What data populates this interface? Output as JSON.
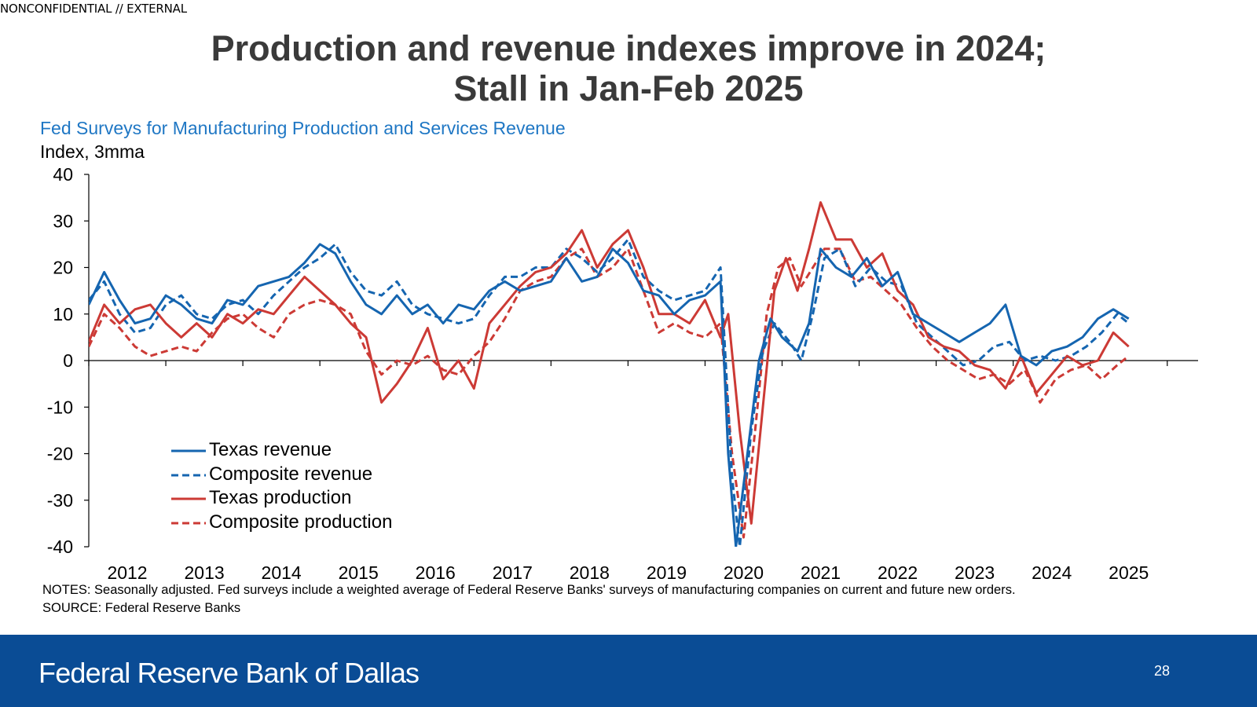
{
  "classification": "NONCONFIDENTIAL // EXTERNAL",
  "headline": {
    "line1": "Production and revenue indexes improve in 2024;",
    "line2": "Stall in Jan-Feb 2025"
  },
  "footer": {
    "brand": "Federal Reserve Bank of Dallas",
    "page_number": "28",
    "color": "#0a4c95"
  },
  "notes": {
    "notes_text": "NOTES: Seasonally adjusted. Fed surveys include a weighted average of Federal Reserve Banks' surveys of manufacturing companies on current and future new orders.",
    "source_text": "SOURCE: Federal Reserve Banks"
  },
  "chart_data": {
    "type": "line",
    "title": "Fed Surveys for Manufacturing Production and Services Revenue",
    "ylabel": "Index, 3mma",
    "ylim": [
      -40,
      40
    ],
    "yticks": [
      40,
      30,
      20,
      10,
      0,
      -10,
      -20,
      -30,
      -40
    ],
    "xlim": [
      2011.5,
      2025.9
    ],
    "xticks": [
      "2012",
      "2013",
      "2014",
      "2015",
      "2016",
      "2017",
      "2018",
      "2019",
      "2020",
      "2021",
      "2022",
      "2023",
      "2024",
      "2025"
    ],
    "legend_position": "bottom-left",
    "series": [
      {
        "name": "Texas revenue",
        "color": "#1565b0",
        "dash": "solid",
        "points": [
          [
            2011.5,
            12
          ],
          [
            2011.7,
            19
          ],
          [
            2011.9,
            13
          ],
          [
            2012.1,
            8
          ],
          [
            2012.3,
            9
          ],
          [
            2012.5,
            14
          ],
          [
            2012.7,
            12
          ],
          [
            2012.9,
            9
          ],
          [
            2013.1,
            8
          ],
          [
            2013.3,
            13
          ],
          [
            2013.5,
            12
          ],
          [
            2013.7,
            16
          ],
          [
            2013.9,
            17
          ],
          [
            2014.1,
            18
          ],
          [
            2014.3,
            21
          ],
          [
            2014.5,
            25
          ],
          [
            2014.7,
            23
          ],
          [
            2014.9,
            17
          ],
          [
            2015.1,
            12
          ],
          [
            2015.3,
            10
          ],
          [
            2015.5,
            14
          ],
          [
            2015.7,
            10
          ],
          [
            2015.9,
            12
          ],
          [
            2016.1,
            8
          ],
          [
            2016.3,
            12
          ],
          [
            2016.5,
            11
          ],
          [
            2016.7,
            15
          ],
          [
            2016.9,
            17
          ],
          [
            2017.1,
            15
          ],
          [
            2017.3,
            16
          ],
          [
            2017.5,
            17
          ],
          [
            2017.7,
            22
          ],
          [
            2017.9,
            17
          ],
          [
            2018.1,
            18
          ],
          [
            2018.3,
            24
          ],
          [
            2018.5,
            21
          ],
          [
            2018.7,
            15
          ],
          [
            2018.9,
            14
          ],
          [
            2019.1,
            10
          ],
          [
            2019.3,
            13
          ],
          [
            2019.5,
            14
          ],
          [
            2019.7,
            17
          ],
          [
            2019.8,
            -20
          ],
          [
            2019.9,
            -40
          ],
          [
            2020.05,
            -20
          ],
          [
            2020.2,
            0
          ],
          [
            2020.35,
            9
          ],
          [
            2020.5,
            5
          ],
          [
            2020.7,
            2
          ],
          [
            2020.85,
            8
          ],
          [
            2021.0,
            24
          ],
          [
            2021.2,
            20
          ],
          [
            2021.4,
            18
          ],
          [
            2021.6,
            22
          ],
          [
            2021.8,
            16
          ],
          [
            2022.0,
            19
          ],
          [
            2022.2,
            10
          ],
          [
            2022.4,
            8
          ],
          [
            2022.6,
            6
          ],
          [
            2022.8,
            4
          ],
          [
            2023.0,
            6
          ],
          [
            2023.2,
            8
          ],
          [
            2023.4,
            12
          ],
          [
            2023.6,
            1
          ],
          [
            2023.8,
            -1
          ],
          [
            2024.0,
            2
          ],
          [
            2024.2,
            3
          ],
          [
            2024.4,
            5
          ],
          [
            2024.6,
            9
          ],
          [
            2024.8,
            11
          ],
          [
            2025.0,
            9
          ]
        ]
      },
      {
        "name": "Composite revenue",
        "color": "#1565b0",
        "dash": "dashed",
        "points": [
          [
            2011.5,
            13
          ],
          [
            2011.7,
            17
          ],
          [
            2011.9,
            10
          ],
          [
            2012.1,
            6
          ],
          [
            2012.3,
            7
          ],
          [
            2012.5,
            12
          ],
          [
            2012.7,
            14
          ],
          [
            2012.9,
            10
          ],
          [
            2013.1,
            9
          ],
          [
            2013.3,
            12
          ],
          [
            2013.5,
            13
          ],
          [
            2013.7,
            10
          ],
          [
            2013.9,
            14
          ],
          [
            2014.1,
            17
          ],
          [
            2014.3,
            20
          ],
          [
            2014.5,
            22
          ],
          [
            2014.7,
            25
          ],
          [
            2014.9,
            19
          ],
          [
            2015.1,
            15
          ],
          [
            2015.3,
            14
          ],
          [
            2015.5,
            17
          ],
          [
            2015.7,
            12
          ],
          [
            2015.9,
            10
          ],
          [
            2016.1,
            9
          ],
          [
            2016.3,
            8
          ],
          [
            2016.5,
            9
          ],
          [
            2016.7,
            14
          ],
          [
            2016.9,
            18
          ],
          [
            2017.1,
            18
          ],
          [
            2017.3,
            20
          ],
          [
            2017.5,
            20
          ],
          [
            2017.7,
            24
          ],
          [
            2017.9,
            22
          ],
          [
            2018.1,
            19
          ],
          [
            2018.3,
            22
          ],
          [
            2018.5,
            26
          ],
          [
            2018.7,
            18
          ],
          [
            2018.9,
            15
          ],
          [
            2019.1,
            13
          ],
          [
            2019.3,
            14
          ],
          [
            2019.5,
            15
          ],
          [
            2019.7,
            20
          ],
          [
            2019.85,
            -25
          ],
          [
            2019.95,
            -40
          ],
          [
            2020.1,
            -15
          ],
          [
            2020.25,
            2
          ],
          [
            2020.4,
            8
          ],
          [
            2020.6,
            4
          ],
          [
            2020.75,
            0
          ],
          [
            2020.9,
            10
          ],
          [
            2021.05,
            22
          ],
          [
            2021.25,
            24
          ],
          [
            2021.45,
            16
          ],
          [
            2021.65,
            20
          ],
          [
            2021.85,
            17
          ],
          [
            2022.05,
            16
          ],
          [
            2022.25,
            8
          ],
          [
            2022.45,
            5
          ],
          [
            2022.65,
            2
          ],
          [
            2022.85,
            -1
          ],
          [
            2023.05,
            0
          ],
          [
            2023.25,
            3
          ],
          [
            2023.45,
            4
          ],
          [
            2023.65,
            0
          ],
          [
            2023.85,
            1
          ],
          [
            2024.05,
            0
          ],
          [
            2024.25,
            1
          ],
          [
            2024.45,
            3
          ],
          [
            2024.65,
            6
          ],
          [
            2024.85,
            10
          ],
          [
            2025.0,
            8
          ]
        ]
      },
      {
        "name": "Texas production",
        "color": "#cc3a35",
        "dash": "solid",
        "points": [
          [
            2011.5,
            4
          ],
          [
            2011.7,
            12
          ],
          [
            2011.9,
            8
          ],
          [
            2012.1,
            11
          ],
          [
            2012.3,
            12
          ],
          [
            2012.5,
            8
          ],
          [
            2012.7,
            5
          ],
          [
            2012.9,
            8
          ],
          [
            2013.1,
            5
          ],
          [
            2013.3,
            10
          ],
          [
            2013.5,
            8
          ],
          [
            2013.7,
            11
          ],
          [
            2013.9,
            10
          ],
          [
            2014.1,
            14
          ],
          [
            2014.3,
            18
          ],
          [
            2014.5,
            15
          ],
          [
            2014.7,
            12
          ],
          [
            2014.9,
            8
          ],
          [
            2015.1,
            5
          ],
          [
            2015.3,
            -9
          ],
          [
            2015.5,
            -5
          ],
          [
            2015.7,
            0
          ],
          [
            2015.9,
            7
          ],
          [
            2016.1,
            -4
          ],
          [
            2016.3,
            0
          ],
          [
            2016.5,
            -6
          ],
          [
            2016.7,
            8
          ],
          [
            2016.9,
            12
          ],
          [
            2017.1,
            16
          ],
          [
            2017.3,
            19
          ],
          [
            2017.5,
            20
          ],
          [
            2017.7,
            23
          ],
          [
            2017.9,
            28
          ],
          [
            2018.1,
            20
          ],
          [
            2018.3,
            25
          ],
          [
            2018.5,
            28
          ],
          [
            2018.7,
            20
          ],
          [
            2018.9,
            10
          ],
          [
            2019.1,
            10
          ],
          [
            2019.3,
            8
          ],
          [
            2019.5,
            13
          ],
          [
            2019.7,
            5
          ],
          [
            2019.8,
            10
          ],
          [
            2019.95,
            -15
          ],
          [
            2020.1,
            -35
          ],
          [
            2020.25,
            -10
          ],
          [
            2020.4,
            15
          ],
          [
            2020.55,
            22
          ],
          [
            2020.7,
            15
          ],
          [
            2020.85,
            24
          ],
          [
            2021.0,
            34
          ],
          [
            2021.2,
            26
          ],
          [
            2021.4,
            26
          ],
          [
            2021.6,
            20
          ],
          [
            2021.8,
            23
          ],
          [
            2022.0,
            15
          ],
          [
            2022.2,
            12
          ],
          [
            2022.4,
            5
          ],
          [
            2022.6,
            3
          ],
          [
            2022.8,
            2
          ],
          [
            2023.0,
            -1
          ],
          [
            2023.2,
            -2
          ],
          [
            2023.4,
            -6
          ],
          [
            2023.6,
            1
          ],
          [
            2023.8,
            -7
          ],
          [
            2024.0,
            -3
          ],
          [
            2024.2,
            1
          ],
          [
            2024.4,
            -1
          ],
          [
            2024.6,
            0
          ],
          [
            2024.8,
            6
          ],
          [
            2025.0,
            3
          ]
        ]
      },
      {
        "name": "Composite production",
        "color": "#cc3a35",
        "dash": "dashed",
        "points": [
          [
            2011.5,
            3
          ],
          [
            2011.7,
            10
          ],
          [
            2011.9,
            7
          ],
          [
            2012.1,
            3
          ],
          [
            2012.3,
            1
          ],
          [
            2012.5,
            2
          ],
          [
            2012.7,
            3
          ],
          [
            2012.9,
            2
          ],
          [
            2013.1,
            6
          ],
          [
            2013.3,
            9
          ],
          [
            2013.5,
            10
          ],
          [
            2013.7,
            7
          ],
          [
            2013.9,
            5
          ],
          [
            2014.1,
            10
          ],
          [
            2014.3,
            12
          ],
          [
            2014.5,
            13
          ],
          [
            2014.7,
            12
          ],
          [
            2014.9,
            10
          ],
          [
            2015.1,
            2
          ],
          [
            2015.3,
            -3
          ],
          [
            2015.5,
            0
          ],
          [
            2015.7,
            -1
          ],
          [
            2015.9,
            1
          ],
          [
            2016.1,
            -2
          ],
          [
            2016.3,
            -3
          ],
          [
            2016.5,
            1
          ],
          [
            2016.7,
            4
          ],
          [
            2016.9,
            9
          ],
          [
            2017.1,
            15
          ],
          [
            2017.3,
            17
          ],
          [
            2017.5,
            18
          ],
          [
            2017.7,
            22
          ],
          [
            2017.9,
            24
          ],
          [
            2018.1,
            18
          ],
          [
            2018.3,
            20
          ],
          [
            2018.5,
            24
          ],
          [
            2018.7,
            15
          ],
          [
            2018.9,
            6
          ],
          [
            2019.1,
            8
          ],
          [
            2019.3,
            6
          ],
          [
            2019.5,
            5
          ],
          [
            2019.7,
            8
          ],
          [
            2019.85,
            -20
          ],
          [
            2020.0,
            -38
          ],
          [
            2020.15,
            -15
          ],
          [
            2020.3,
            10
          ],
          [
            2020.45,
            20
          ],
          [
            2020.6,
            22
          ],
          [
            2020.75,
            16
          ],
          [
            2020.9,
            20
          ],
          [
            2021.05,
            24
          ],
          [
            2021.25,
            24
          ],
          [
            2021.45,
            17
          ],
          [
            2021.65,
            18
          ],
          [
            2021.85,
            15
          ],
          [
            2022.05,
            12
          ],
          [
            2022.25,
            7
          ],
          [
            2022.45,
            3
          ],
          [
            2022.65,
            0
          ],
          [
            2022.85,
            -2
          ],
          [
            2023.05,
            -4
          ],
          [
            2023.25,
            -3
          ],
          [
            2023.45,
            -5
          ],
          [
            2023.65,
            -2
          ],
          [
            2023.85,
            -9
          ],
          [
            2024.05,
            -4
          ],
          [
            2024.25,
            -2
          ],
          [
            2024.45,
            -1
          ],
          [
            2024.65,
            -4
          ],
          [
            2024.85,
            -1
          ],
          [
            2025.0,
            1
          ]
        ]
      }
    ]
  }
}
